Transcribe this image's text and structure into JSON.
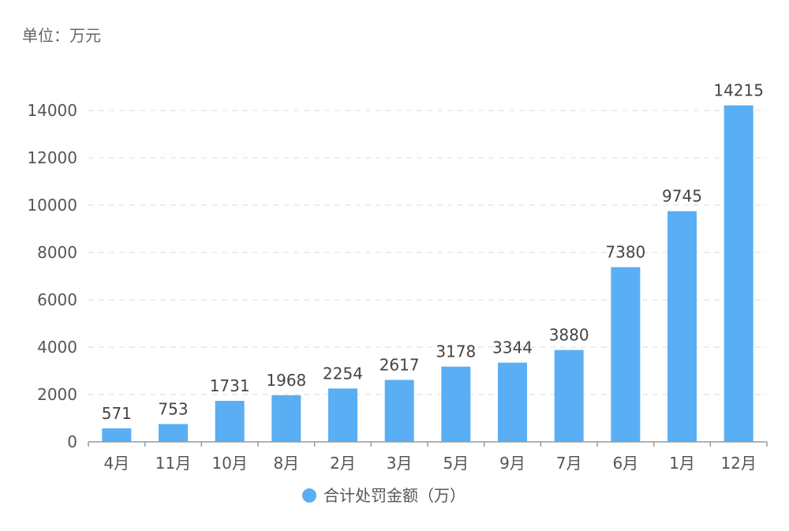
{
  "chart_data": {
    "type": "bar",
    "unit_label": "单位：万元",
    "categories": [
      "4月",
      "11月",
      "10月",
      "8月",
      "2月",
      "3月",
      "5月",
      "9月",
      "7月",
      "6月",
      "1月",
      "12月"
    ],
    "series": [
      {
        "name": "合计处罚金额（万）",
        "values": [
          571,
          753,
          1731,
          1968,
          2254,
          2617,
          3178,
          3344,
          3880,
          7380,
          9745,
          14215
        ],
        "color": "#5AAEF3"
      }
    ],
    "y_ticks": [
      "0",
      "2000",
      "4000",
      "6000",
      "8000",
      "10000",
      "12000",
      "14000"
    ],
    "ylim": [
      0,
      14000
    ],
    "grid": true,
    "data_labels": true,
    "legend_position": "bottom-center",
    "colors": {
      "bar": "#5AAEF3",
      "grid": "#E3E3E3",
      "axis": "#999999"
    }
  }
}
